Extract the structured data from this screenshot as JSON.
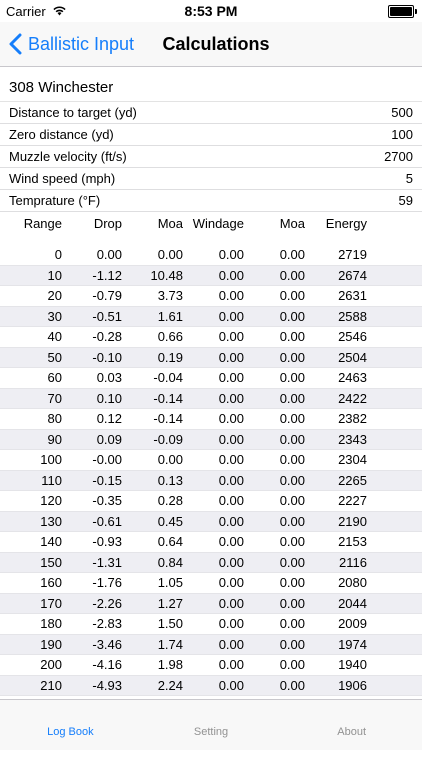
{
  "status": {
    "carrier": "Carrier",
    "time": "8:53 PM"
  },
  "nav": {
    "back_label": "Ballistic Input",
    "title": "Calculations"
  },
  "rifle": "308 Winchester",
  "inputs": [
    {
      "label": "Distance to target (yd)",
      "value": "500"
    },
    {
      "label": "Zero distance (yd)",
      "value": "100"
    },
    {
      "label": "Muzzle velocity (ft/s)",
      "value": "2700"
    },
    {
      "label": "Wind speed (mph)",
      "value": "5"
    },
    {
      "label": "Temprature (°F)",
      "value": "59"
    }
  ],
  "table": {
    "headers": [
      "Range",
      "Drop",
      "Moa",
      "Windage",
      "Moa",
      "Energy"
    ],
    "rows": [
      [
        "0",
        "0.00",
        "0.00",
        "0.00",
        "0.00",
        "2719"
      ],
      [
        "10",
        "-1.12",
        "10.48",
        "0.00",
        "0.00",
        "2674"
      ],
      [
        "20",
        "-0.79",
        "3.73",
        "0.00",
        "0.00",
        "2631"
      ],
      [
        "30",
        "-0.51",
        "1.61",
        "0.00",
        "0.00",
        "2588"
      ],
      [
        "40",
        "-0.28",
        "0.66",
        "0.00",
        "0.00",
        "2546"
      ],
      [
        "50",
        "-0.10",
        "0.19",
        "0.00",
        "0.00",
        "2504"
      ],
      [
        "60",
        "0.03",
        "-0.04",
        "0.00",
        "0.00",
        "2463"
      ],
      [
        "70",
        "0.10",
        "-0.14",
        "0.00",
        "0.00",
        "2422"
      ],
      [
        "80",
        "0.12",
        "-0.14",
        "0.00",
        "0.00",
        "2382"
      ],
      [
        "90",
        "0.09",
        "-0.09",
        "0.00",
        "0.00",
        "2343"
      ],
      [
        "100",
        "-0.00",
        "0.00",
        "0.00",
        "0.00",
        "2304"
      ],
      [
        "110",
        "-0.15",
        "0.13",
        "0.00",
        "0.00",
        "2265"
      ],
      [
        "120",
        "-0.35",
        "0.28",
        "0.00",
        "0.00",
        "2227"
      ],
      [
        "130",
        "-0.61",
        "0.45",
        "0.00",
        "0.00",
        "2190"
      ],
      [
        "140",
        "-0.93",
        "0.64",
        "0.00",
        "0.00",
        "2153"
      ],
      [
        "150",
        "-1.31",
        "0.84",
        "0.00",
        "0.00",
        "2116"
      ],
      [
        "160",
        "-1.76",
        "1.05",
        "0.00",
        "0.00",
        "2080"
      ],
      [
        "170",
        "-2.26",
        "1.27",
        "0.00",
        "0.00",
        "2044"
      ],
      [
        "180",
        "-2.83",
        "1.50",
        "0.00",
        "0.00",
        "2009"
      ],
      [
        "190",
        "-3.46",
        "1.74",
        "0.00",
        "0.00",
        "1974"
      ],
      [
        "200",
        "-4.16",
        "1.98",
        "0.00",
        "0.00",
        "1940"
      ],
      [
        "210",
        "-4.93",
        "2.24",
        "0.00",
        "0.00",
        "1906"
      ]
    ]
  },
  "tabs": [
    {
      "label": "Log Book",
      "active": true
    },
    {
      "label": "Setting",
      "active": false
    },
    {
      "label": "About",
      "active": false
    }
  ],
  "colors": {
    "accent": "#157efb",
    "alt_row": "#eeeef3"
  }
}
